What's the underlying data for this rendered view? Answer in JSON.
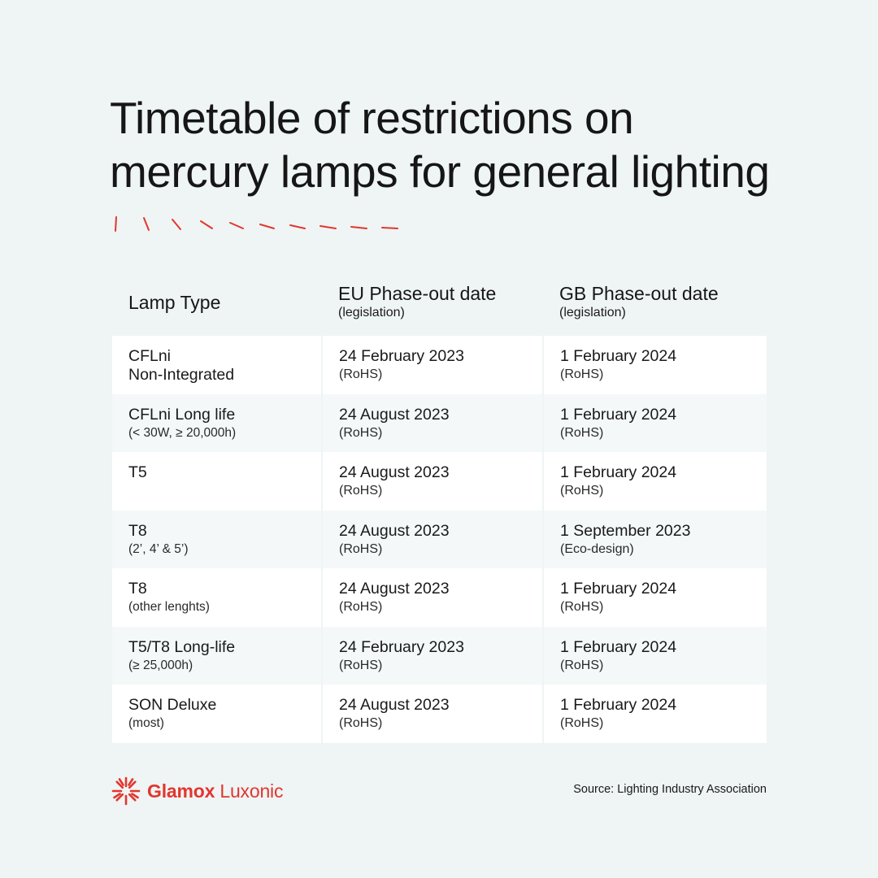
{
  "title": {
    "line1": "Timetable of restrictions on",
    "line2": "mercury lamps for general lighting"
  },
  "colors": {
    "accent": "#e2362f",
    "background": "#eff4f4",
    "row_white": "#ffffff",
    "row_alt": "#f4f8f8"
  },
  "table": {
    "headers": [
      {
        "main": "Lamp Type",
        "sub": ""
      },
      {
        "main": "EU Phase-out date",
        "sub": "(legislation)"
      },
      {
        "main": "GB Phase-out date",
        "sub": "(legislation)"
      }
    ],
    "rows": [
      {
        "type_main": "CFLni",
        "type_sub": "Non-Integrated",
        "eu_date": "24 February 2023",
        "eu_leg": "(RoHS)",
        "gb_date": "1 February 2024",
        "gb_leg": "(RoHS)"
      },
      {
        "type_main": "CFLni Long life",
        "type_sub": "(< 30W, ≥ 20,000h)",
        "eu_date": "24 August 2023",
        "eu_leg": "(RoHS)",
        "gb_date": "1 February 2024",
        "gb_leg": "(RoHS)"
      },
      {
        "type_main": "T5",
        "type_sub": "",
        "eu_date": "24 August 2023",
        "eu_leg": "(RoHS)",
        "gb_date": "1 February 2024",
        "gb_leg": "(RoHS)"
      },
      {
        "type_main": "T8",
        "type_sub": "(2’, 4’ & 5’)",
        "eu_date": "24 August 2023",
        "eu_leg": "(RoHS)",
        "gb_date": "1 September 2023",
        "gb_leg": "(Eco-design)"
      },
      {
        "type_main": "T8",
        "type_sub": "(other lenghts)",
        "eu_date": "24 August 2023",
        "eu_leg": "(RoHS)",
        "gb_date": "1 February 2024",
        "gb_leg": "(RoHS)"
      },
      {
        "type_main": "T5/T8 Long-life",
        "type_sub": "(≥ 25,000h)",
        "eu_date": "24 February 2023",
        "eu_leg": "(RoHS)",
        "gb_date": "1 February 2024",
        "gb_leg": "(RoHS)"
      },
      {
        "type_main": "SON Deluxe",
        "type_sub": "(most)",
        "eu_date": "24 August 2023",
        "eu_leg": "(RoHS)",
        "gb_date": "1 February 2024",
        "gb_leg": "(RoHS)"
      }
    ]
  },
  "brand": {
    "name_bold": "Glamox",
    "name_light": "Luxonic",
    "icon": "sunburst-logo-icon"
  },
  "source": "Source: Lighting Industry Association"
}
